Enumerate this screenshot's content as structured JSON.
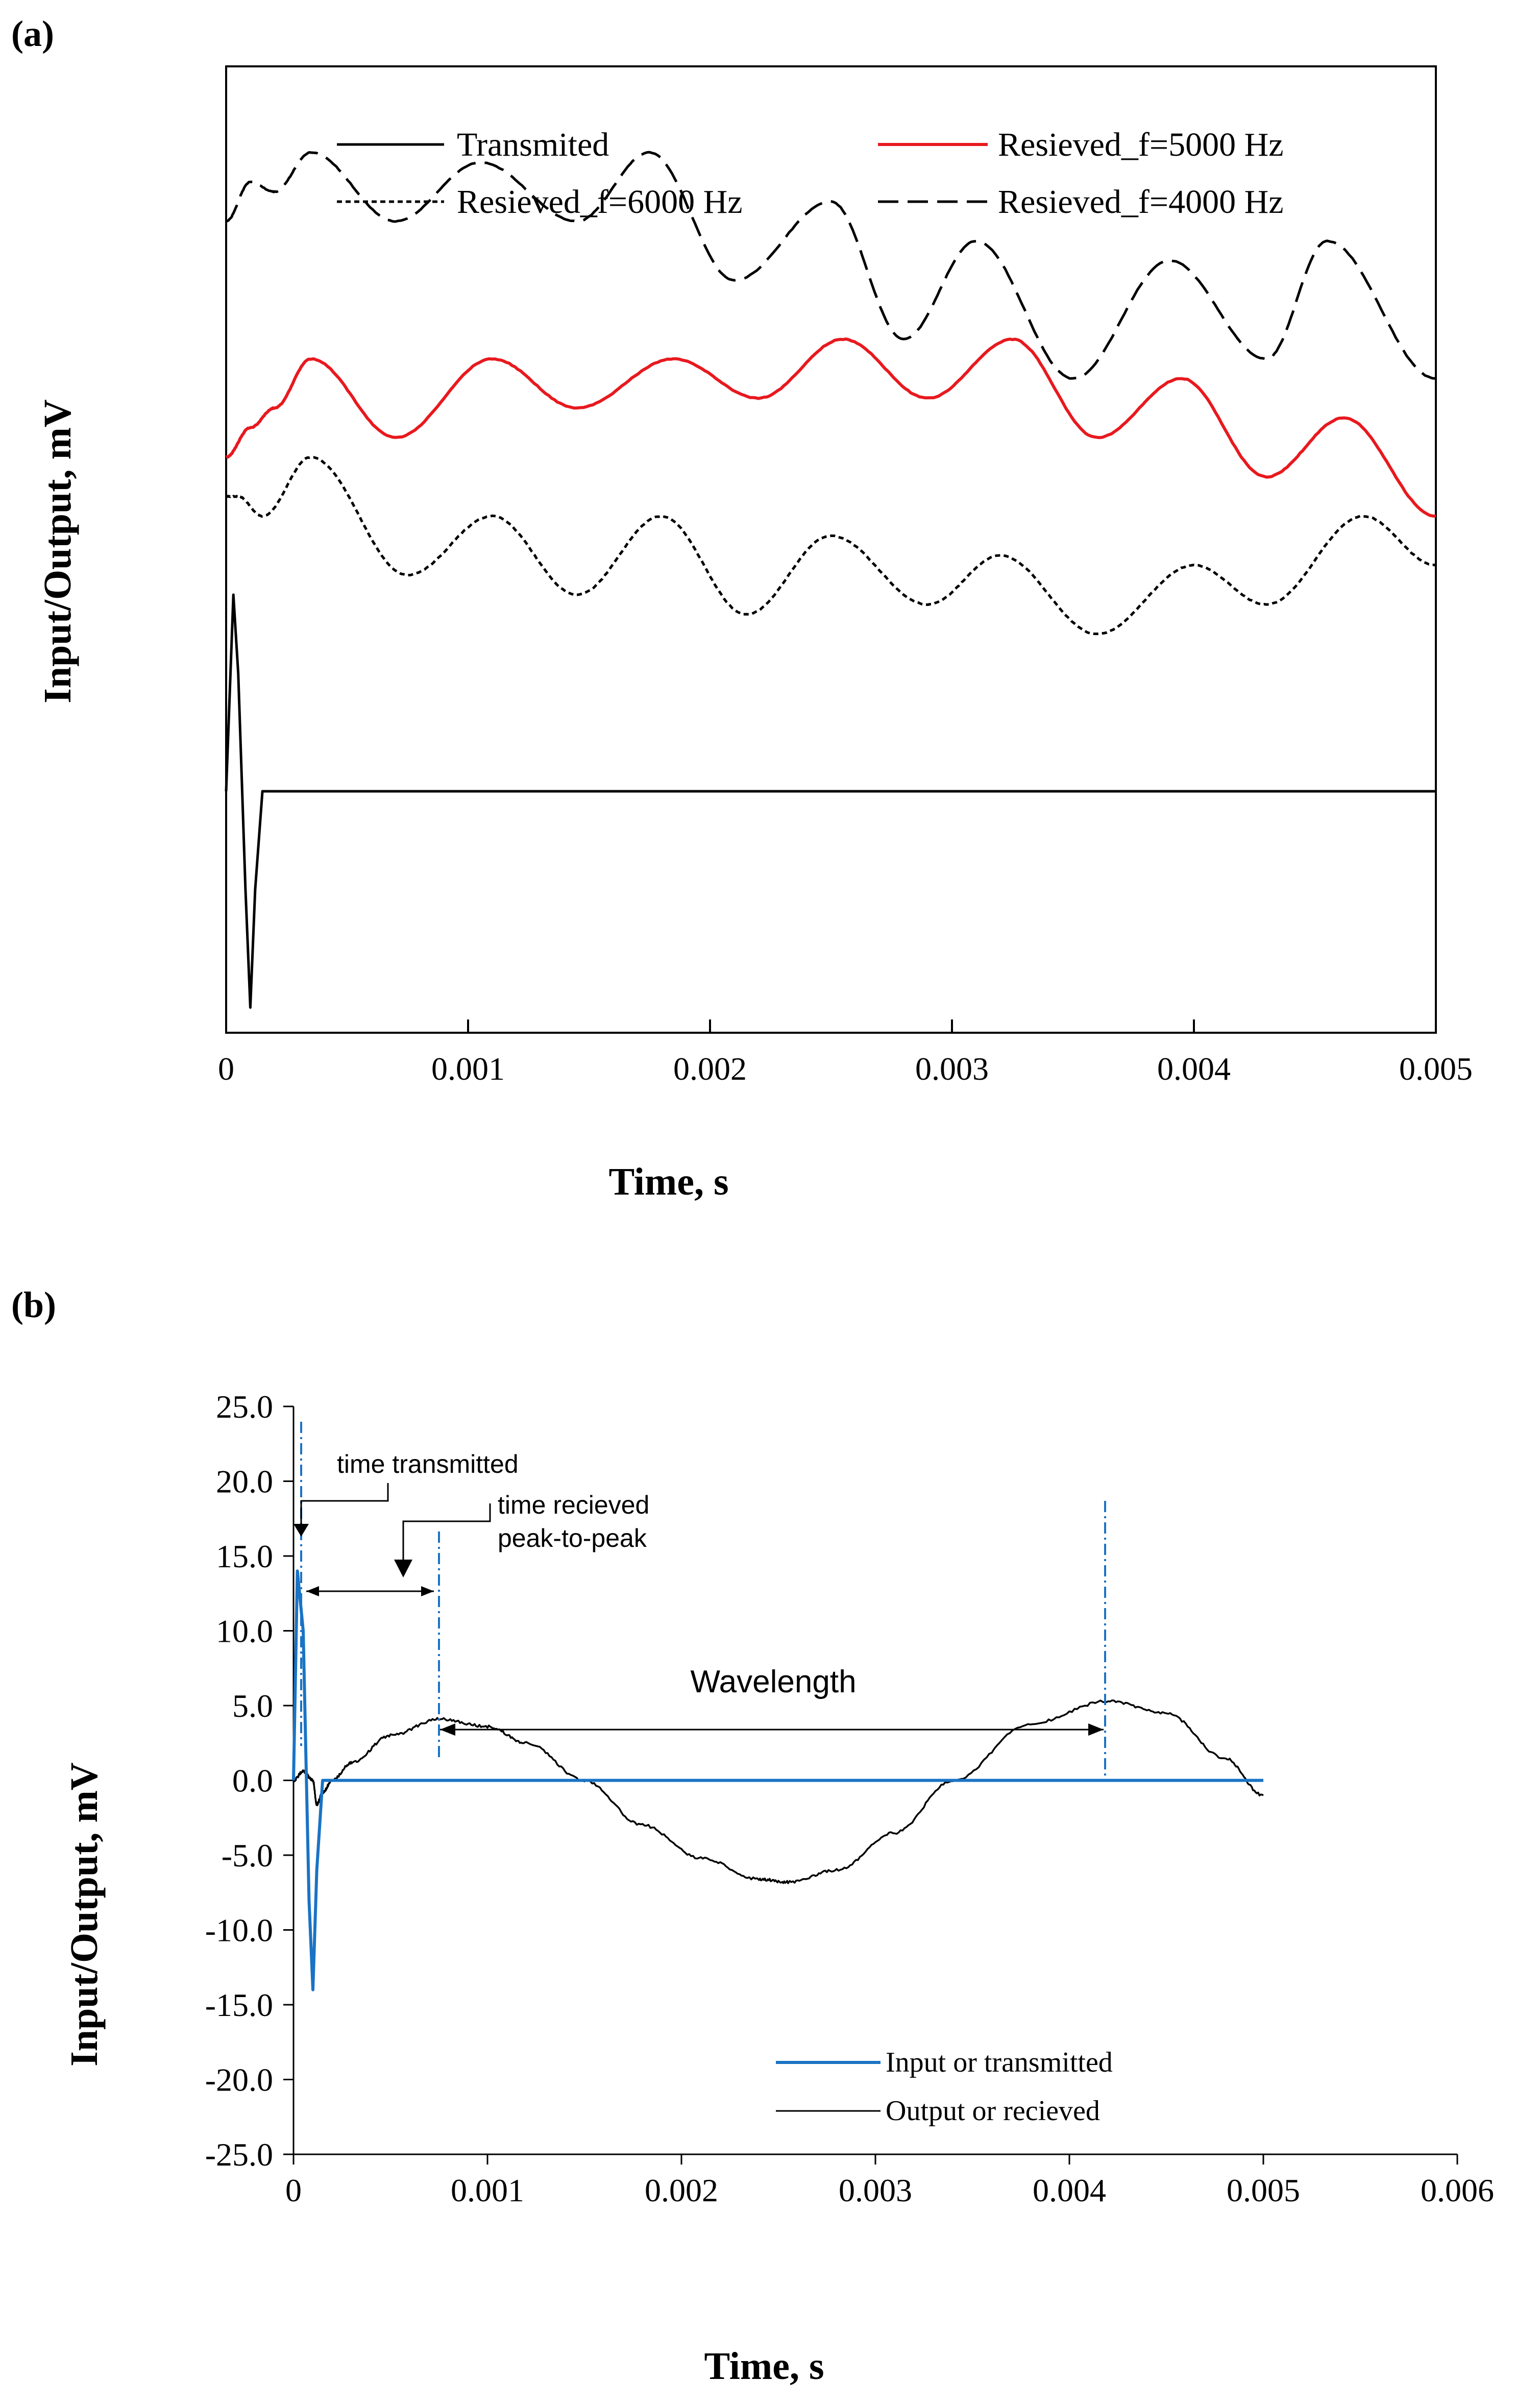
{
  "panel_a_label": "(a)",
  "panel_b_label": "(b)",
  "chart_data": [
    {
      "type": "line",
      "xlabel": "Time, s",
      "ylabel": "Input/Output, mV",
      "xlim": [
        0,
        0.005
      ],
      "xticks": [
        "0",
        "0.001",
        "0.002",
        "0.003",
        "0.004",
        "0.005"
      ],
      "yaxis_tick_labels": "none",
      "legend_location": "top",
      "series": [
        {
          "name": "Transmited",
          "style": "solid",
          "color": "#000000",
          "x": [
            0,
            3e-05,
            5e-05,
            8e-05,
            0.0001,
            0.00012,
            0.00015,
            0.0002,
            0.005
          ],
          "y": [
            0,
            1.0,
            0.6,
            -0.5,
            -1.1,
            -0.5,
            0,
            0,
            0
          ]
        },
        {
          "name": "Resieved_f=5000 Hz",
          "style": "solid",
          "color": "#e8191e",
          "x": [
            0,
            0.0001,
            0.0002,
            0.00035,
            0.0007,
            0.0011,
            0.00145,
            0.00185,
            0.0022,
            0.00255,
            0.0029,
            0.00325,
            0.0036,
            0.00395,
            0.0043,
            0.00462,
            0.005
          ],
          "y": [
            1.7,
            1.85,
            1.95,
            2.2,
            1.8,
            2.2,
            1.95,
            2.2,
            2.0,
            2.3,
            2.0,
            2.3,
            1.8,
            2.1,
            1.6,
            1.9,
            1.4
          ]
        },
        {
          "name": "Resieved_f=6000 Hz",
          "style": "dotted",
          "color": "#000000",
          "x": [
            0,
            5e-05,
            0.00015,
            0.00035,
            0.00075,
            0.0011,
            0.00145,
            0.0018,
            0.00215,
            0.0025,
            0.0029,
            0.0032,
            0.0036,
            0.004,
            0.0043,
            0.0047,
            0.005
          ],
          "y": [
            1.5,
            1.5,
            1.4,
            1.7,
            1.1,
            1.4,
            1.0,
            1.4,
            0.9,
            1.3,
            0.95,
            1.2,
            0.8,
            1.15,
            0.95,
            1.4,
            1.15
          ]
        },
        {
          "name": "Resieved_f=4000 Hz",
          "style": "dashed",
          "color": "#000000",
          "x": [
            0,
            0.0001,
            0.0002,
            0.00035,
            0.0007,
            0.00105,
            0.00145,
            0.00175,
            0.0021,
            0.0025,
            0.0028,
            0.0031,
            0.0035,
            0.0039,
            0.0043,
            0.00455,
            0.005
          ],
          "y": [
            2.9,
            3.1,
            3.05,
            3.25,
            2.9,
            3.2,
            2.9,
            3.25,
            2.6,
            3.0,
            2.3,
            2.8,
            2.1,
            2.7,
            2.2,
            2.8,
            2.1
          ]
        }
      ]
    },
    {
      "type": "line",
      "xlabel": "Time, s",
      "ylabel": "Input/Output, mV",
      "xlim": [
        0,
        0.006
      ],
      "ylim": [
        -25,
        25
      ],
      "xticks": [
        "0",
        "0.001",
        "0.002",
        "0.003",
        "0.004",
        "0.005",
        "0.006"
      ],
      "yticks": [
        "-25.0",
        "-20.0",
        "-15.0",
        "-10.0",
        "-5.0",
        "0.0",
        "5.0",
        "10.0",
        "15.0",
        "20.0",
        "25.0"
      ],
      "legend_location": "bottom-right",
      "series": [
        {
          "name": "Input or transmitted",
          "color": "#1a73c5",
          "x": [
            0,
            2e-05,
            5e-05,
            8e-05,
            0.0001,
            0.00012,
            0.00015,
            0.0002,
            0.005
          ],
          "y": [
            0,
            14,
            10,
            -8,
            -14,
            -6,
            0,
            0,
            0
          ]
        },
        {
          "name": "Output or recieved",
          "color": "#000000",
          "x": [
            0,
            5e-05,
            0.0001,
            0.00012,
            0.00015,
            0.0002,
            0.0003,
            0.0005,
            0.00075,
            0.001,
            0.0012,
            0.0015,
            0.0018,
            0.0021,
            0.0024,
            0.00255,
            0.0028,
            0.0031,
            0.0034,
            0.0038,
            0.0042,
            0.0045,
            0.0048,
            0.005
          ],
          "y": [
            0,
            0.6,
            0,
            -1.6,
            -0.8,
            0,
            1.2,
            3,
            4.1,
            3.6,
            2.5,
            0,
            -3,
            -5.2,
            -6.6,
            -6.8,
            -6.0,
            -3.5,
            0,
            3.8,
            5.3,
            4.5,
            1.5,
            -1.0
          ]
        }
      ],
      "annotations": [
        "time transmitted",
        "time recieved",
        "peak-to-peak",
        "Wavelength"
      ]
    }
  ]
}
